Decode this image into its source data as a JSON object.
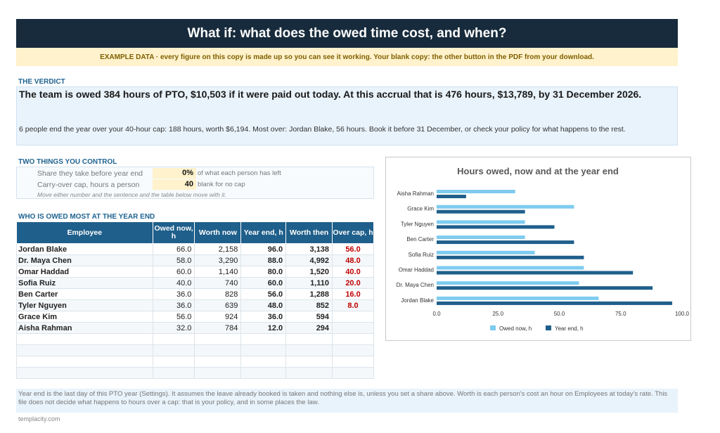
{
  "header": {
    "title": "What if: what does the owed time cost, and when?",
    "example_note": "EXAMPLE DATA  ·  every figure on this copy is made up so you can see it working. Your blank copy: the other button in the PDF from your download."
  },
  "verdict": {
    "label": "THE VERDICT",
    "main": "The team is owed 384 hours of PTO, $10,503 if it were paid out today. At this accrual that is 476 hours, $13,789, by 31 December 2026.",
    "sub": "6 people end the year over your 40-hour cap: 188 hours, worth $6,194. Most over: Jordan Blake, 56 hours. Book it before 31 December, or check your policy for what happens to the rest."
  },
  "controls": {
    "label": "TWO THINGS YOU CONTROL",
    "share_label": "Share they take before year end",
    "share_value": "0%",
    "share_unit": "of what each person has left",
    "cap_label": "Carry-over cap, hours a person",
    "cap_value": "40",
    "cap_unit": "blank for no cap",
    "note": "Move either number and the sentence and the table below move with it."
  },
  "table": {
    "label": "WHO IS OWED MOST AT THE YEAR END",
    "headers": [
      "Employee",
      "Owed now, h",
      "Worth now",
      "Year end, h",
      "Worth then",
      "Over cap, h"
    ],
    "rows": [
      {
        "name": "Jordan Blake",
        "owed": "66.0",
        "worth_now": "2,158",
        "year_end": "96.0",
        "worth_then": "3,138",
        "over": "56.0"
      },
      {
        "name": "Dr. Maya Chen",
        "owed": "58.0",
        "worth_now": "3,290",
        "year_end": "88.0",
        "worth_then": "4,992",
        "over": "48.0"
      },
      {
        "name": "Omar Haddad",
        "owed": "60.0",
        "worth_now": "1,140",
        "year_end": "80.0",
        "worth_then": "1,520",
        "over": "40.0"
      },
      {
        "name": "Sofia Ruiz",
        "owed": "40.0",
        "worth_now": "740",
        "year_end": "60.0",
        "worth_then": "1,110",
        "over": "20.0"
      },
      {
        "name": "Ben Carter",
        "owed": "36.0",
        "worth_now": "828",
        "year_end": "56.0",
        "worth_then": "1,288",
        "over": "16.0"
      },
      {
        "name": "Tyler Nguyen",
        "owed": "36.0",
        "worth_now": "639",
        "year_end": "48.0",
        "worth_then": "852",
        "over": "8.0"
      },
      {
        "name": "Grace Kim",
        "owed": "56.0",
        "worth_now": "924",
        "year_end": "36.0",
        "worth_then": "594",
        "over": ""
      },
      {
        "name": "Aisha Rahman",
        "owed": "32.0",
        "worth_now": "784",
        "year_end": "12.0",
        "worth_then": "294",
        "over": ""
      }
    ],
    "empty_rows": 4
  },
  "footnote": "Year end is the last day of this PTO year (Settings). It assumes the leave already booked is taken and nothing else is, unless you set a share above. Worth is each person's cost an hour on Employees at today's rate. This file does not decide what happens to hours over a cap: that is your policy, and in some places the law.",
  "brand": "templacity.com",
  "chart_data": {
    "type": "bar",
    "orientation": "horizontal",
    "title": "Hours owed, now and at the year end",
    "categories": [
      "Aisha Rahman",
      "Grace Kim",
      "Tyler Nguyen",
      "Ben Carter",
      "Sofia Ruiz",
      "Omar Haddad",
      "Dr. Maya Chen",
      "Jordan Blake"
    ],
    "series": [
      {
        "name": "Owed now, h",
        "color": "#7ecbef",
        "values": [
          32,
          56,
          36,
          36,
          40,
          60,
          58,
          66
        ]
      },
      {
        "name": "Year end, h",
        "color": "#1f5f8b",
        "values": [
          12,
          36,
          48,
          56,
          60,
          80,
          88,
          96
        ]
      }
    ],
    "xlim": [
      0,
      100
    ],
    "xticks": [
      "0.0",
      "25.0",
      "50.0",
      "75.0",
      "100.0"
    ],
    "legend": "bottom",
    "grid": false
  }
}
